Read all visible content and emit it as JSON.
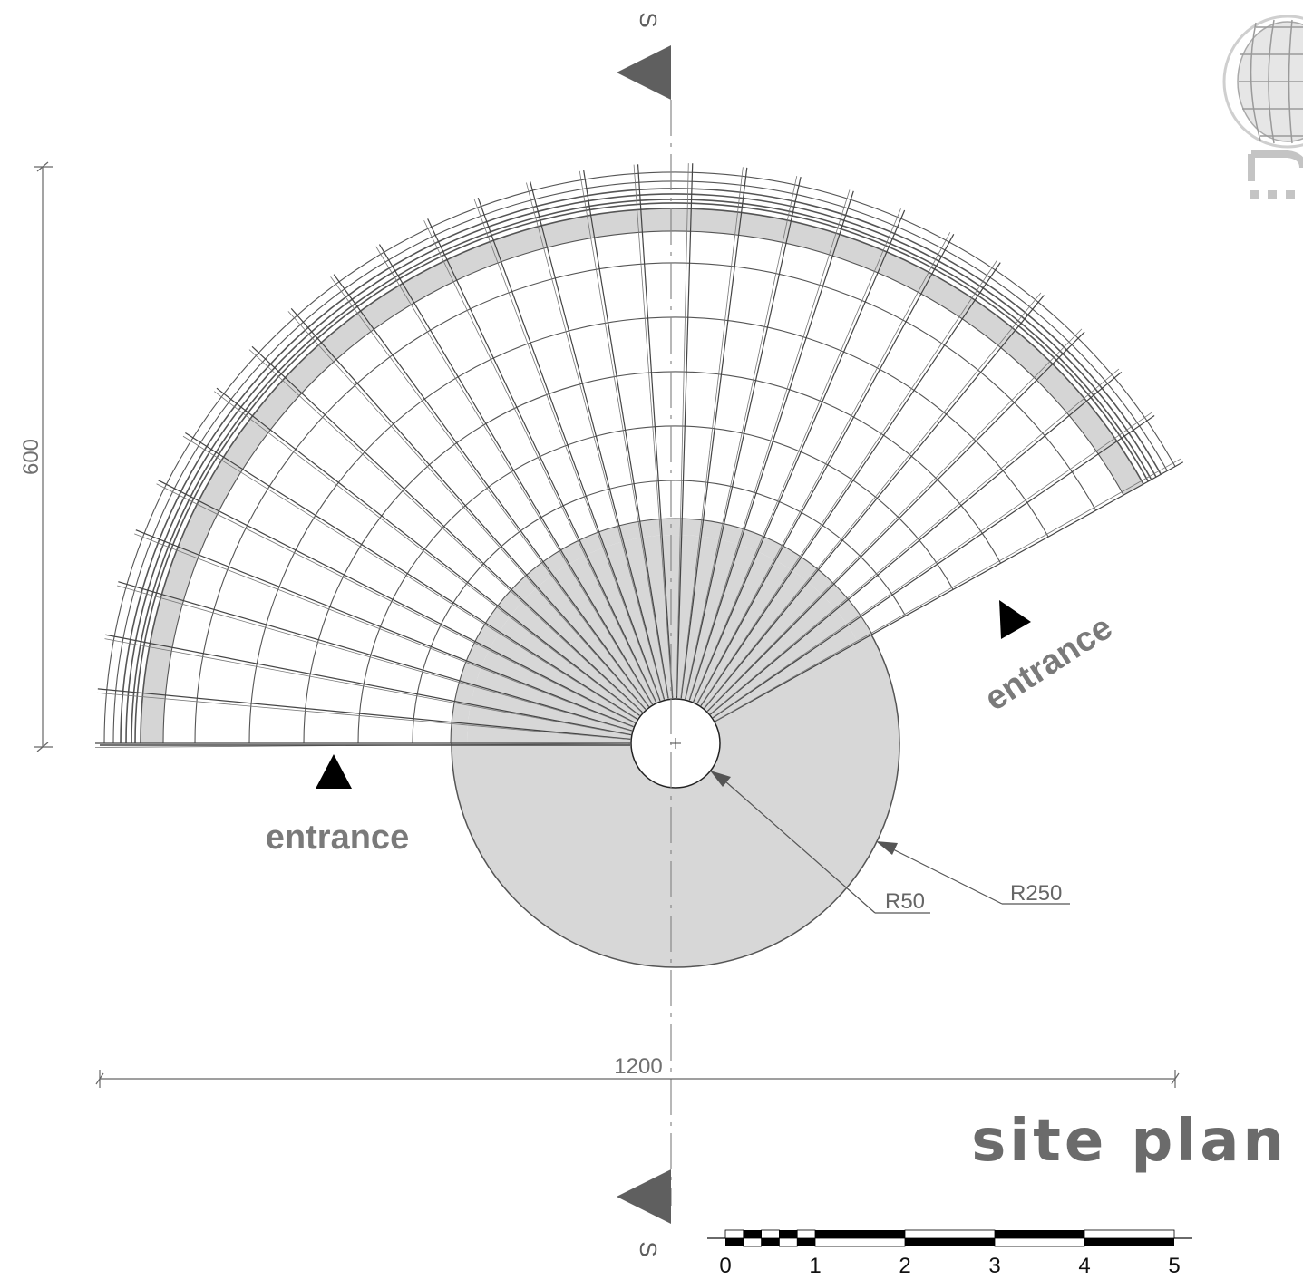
{
  "drawing": {
    "title": "site plan",
    "section_marker": "S",
    "dimension_height": "600",
    "dimension_width": "1200",
    "radius_inner": "R50",
    "radius_outer": "R250",
    "entrance_left": "entrance",
    "entrance_right": "entrance",
    "scale_labels": [
      "0",
      "1",
      "2",
      "3",
      "4",
      "5"
    ],
    "colors": {
      "line": "#5a5a5a",
      "fill_gray": "#d7d7d7",
      "label_gray": "#7a7a7a",
      "arrow_dark": "#5f5f5f",
      "entrance_arrow": "#000000"
    }
  }
}
